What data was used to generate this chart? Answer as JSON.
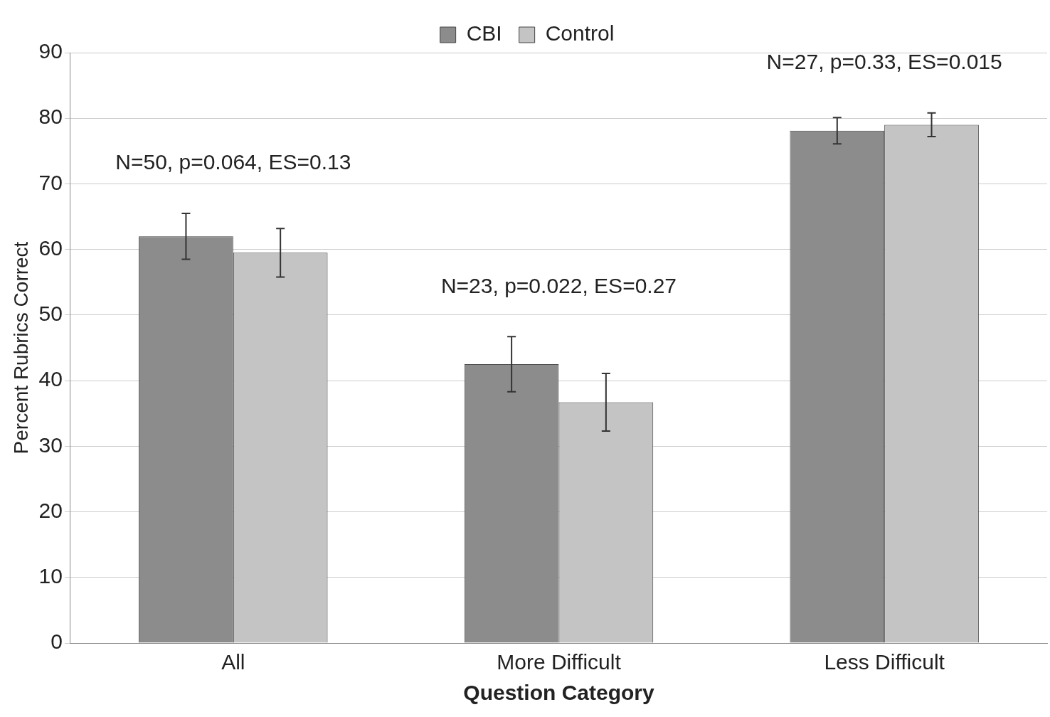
{
  "chart_data": {
    "type": "bar",
    "xlabel": "Question Category",
    "ylabel": "Percent Rubrics Correct",
    "categories": [
      "All",
      "More Difficult",
      "Less Difficult"
    ],
    "series": [
      {
        "name": "CBI",
        "color": "#8c8c8c",
        "values": [
          62,
          42.5,
          78.1
        ],
        "errors": [
          3.5,
          4.2,
          2
        ]
      },
      {
        "name": "Control",
        "color": "#c4c4c4",
        "values": [
          59.5,
          36.7,
          79
        ],
        "errors": [
          3.7,
          4.4,
          1.8
        ]
      }
    ],
    "annotations": [
      "N=50, p=0.064, ES=0.13",
      "N=23, p=0.022, ES=0.27",
      "N=27, p=0.33, ES=0.015"
    ],
    "ylim": [
      0,
      90
    ],
    "yticks": [
      0,
      10,
      20,
      30,
      40,
      50,
      60,
      70,
      80,
      90
    ],
    "grid": "y",
    "legend": "top"
  }
}
